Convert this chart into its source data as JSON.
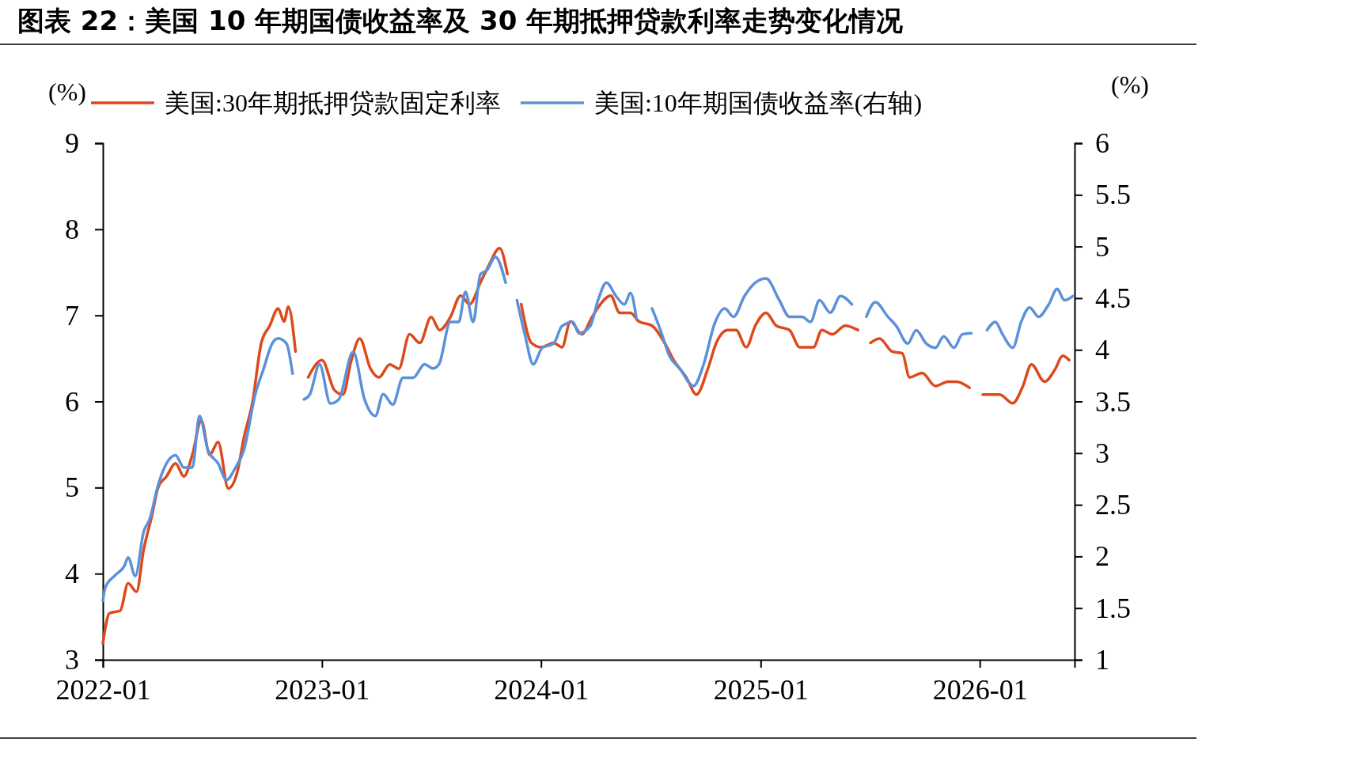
{
  "chart_data": {
    "type": "line",
    "title": "图表 22：美国 10 年期国债收益率及 30 年期抵押贷款利率走势变化情况",
    "ylabel": "(%)",
    "y2label": "(%)",
    "xlim": [
      "2022-01-01",
      "2026-06-08"
    ],
    "xticks": [
      {
        "value": "2022-01-01",
        "label": "2022-01"
      },
      {
        "value": "2023-01-01",
        "label": "2023-01"
      },
      {
        "value": "2024-01-01",
        "label": "2024-01"
      },
      {
        "value": "2025-01-01",
        "label": "2025-01"
      },
      {
        "value": "2026-01-01",
        "label": "2026-01"
      }
    ],
    "ylim": [
      3,
      9
    ],
    "yticks": [
      3,
      4,
      5,
      6,
      7,
      8,
      9
    ],
    "y2lim": [
      1,
      6
    ],
    "y2ticks": [
      1,
      1.5,
      2,
      2.5,
      3,
      3.5,
      4,
      4.5,
      5,
      5.5,
      6
    ],
    "legend": "top",
    "grid": false,
    "line_style": "solid",
    "marker": "none",
    "series": [
      {
        "name": "美国:30年期抵押贷款固定利率",
        "color": "#dc4a1c",
        "x": [
          "2022-01-01",
          "2022-01-12",
          "2022-01-30",
          "2022-02-12",
          "2022-02-26",
          "2022-03-10",
          "2022-03-24",
          "2022-04-03",
          "2022-04-17",
          "2022-05-02",
          "2022-05-16",
          "2022-05-30",
          "2022-06-14",
          "2022-06-28",
          "2022-07-12",
          "2022-07-29",
          "2022-08-13",
          "2022-08-24",
          "2022-09-07",
          "2022-09-22",
          "2022-10-06",
          "2022-10-20",
          "2022-10-30",
          "2022-11-06",
          "2022-11-18",
          "2022-11-25",
          "2022-12-09",
          "2023-01-01",
          "2023-01-22",
          "2023-02-05",
          "2023-02-19",
          "2023-03-05",
          "2023-03-23",
          "2023-04-06",
          "2023-04-24",
          "2023-05-09",
          "2023-05-27",
          "2023-06-13",
          "2023-07-02",
          "2023-07-16",
          "2023-08-03",
          "2023-08-20",
          "2023-09-04",
          "2023-09-22",
          "2023-10-06",
          "2023-10-24",
          "2023-11-06",
          "2023-11-15",
          "2023-11-29",
          "2023-12-16",
          "2024-01-01",
          "2024-01-22",
          "2024-02-05",
          "2024-02-19",
          "2024-03-09",
          "2024-03-26",
          "2024-04-09",
          "2024-04-26",
          "2024-05-11",
          "2024-05-29",
          "2024-06-12",
          "2024-07-04",
          "2024-07-25",
          "2024-08-09",
          "2024-08-30",
          "2024-09-16",
          "2024-10-05",
          "2024-10-19",
          "2024-11-07",
          "2024-11-21",
          "2024-12-08",
          "2024-12-23",
          "2025-01-10",
          "2025-01-27",
          "2025-02-18",
          "2025-03-07",
          "2025-03-30",
          "2025-04-13",
          "2025-04-30",
          "2025-05-22",
          "2025-06-12",
          "2025-06-23",
          "2025-07-03",
          "2025-07-18",
          "2025-08-08",
          "2025-08-25",
          "2025-09-06",
          "2025-09-27",
          "2025-10-19",
          "2025-11-09",
          "2025-11-23",
          "2025-12-15",
          "2025-12-25",
          "2026-01-06",
          "2026-02-03",
          "2026-02-25",
          "2026-03-14",
          "2026-03-28",
          "2026-04-19",
          "2026-05-07",
          "2026-05-19",
          "2026-05-30"
        ],
        "values": [
          3.19,
          3.54,
          3.57,
          3.89,
          3.79,
          4.28,
          4.68,
          5.0,
          5.13,
          5.28,
          5.13,
          5.38,
          5.78,
          5.38,
          5.53,
          4.99,
          5.18,
          5.58,
          5.98,
          6.68,
          6.88,
          7.08,
          6.93,
          7.1,
          6.58,
          null,
          6.28,
          6.48,
          6.13,
          6.08,
          6.48,
          6.73,
          6.38,
          6.28,
          6.43,
          6.38,
          6.78,
          6.68,
          6.98,
          6.83,
          6.98,
          7.23,
          7.13,
          7.38,
          7.58,
          7.78,
          7.48,
          null,
          7.13,
          6.68,
          6.63,
          6.68,
          6.63,
          6.93,
          6.78,
          6.98,
          7.13,
          7.23,
          7.03,
          7.03,
          6.93,
          6.88,
          6.68,
          6.48,
          6.28,
          6.08,
          6.38,
          6.68,
          6.83,
          6.83,
          6.63,
          6.88,
          7.03,
          6.88,
          6.83,
          6.63,
          6.63,
          6.83,
          6.78,
          6.88,
          6.83,
          null,
          6.68,
          6.73,
          6.58,
          6.56,
          6.28,
          6.33,
          6.18,
          6.23,
          6.23,
          6.16,
          null,
          6.08,
          6.08,
          5.98,
          6.18,
          6.43,
          6.23,
          6.38,
          6.53,
          6.48
        ]
      },
      {
        "name": "美国:10年期国债收益率(右轴)",
        "color": "#5b91d9",
        "axis": "y2",
        "x": [
          "2022-01-01",
          "2022-01-05",
          "2022-01-22",
          "2022-02-06",
          "2022-02-12",
          "2022-02-24",
          "2022-03-10",
          "2022-03-20",
          "2022-04-03",
          "2022-04-17",
          "2022-05-02",
          "2022-05-16",
          "2022-05-30",
          "2022-06-11",
          "2022-06-25",
          "2022-07-12",
          "2022-07-26",
          "2022-08-10",
          "2022-08-24",
          "2022-09-12",
          "2022-09-26",
          "2022-10-10",
          "2022-10-20",
          "2022-11-03",
          "2022-11-13",
          "2022-11-22",
          "2022-12-02",
          "2022-12-12",
          "2022-12-28",
          "2023-01-15",
          "2023-01-29",
          "2023-02-22",
          "2023-03-13",
          "2023-03-31",
          "2023-04-13",
          "2023-04-29",
          "2023-05-16",
          "2023-06-02",
          "2023-06-21",
          "2023-07-05",
          "2023-07-15",
          "2023-08-03",
          "2023-08-17",
          "2023-08-28",
          "2023-09-10",
          "2023-09-22",
          "2023-10-03",
          "2023-10-17",
          "2023-11-03",
          "2023-11-12",
          "2023-11-22",
          "2023-12-05",
          "2023-12-19",
          "2024-01-03",
          "2024-01-22",
          "2024-02-05",
          "2024-02-23",
          "2024-03-04",
          "2024-03-23",
          "2024-04-05",
          "2024-04-19",
          "2024-05-05",
          "2024-05-19",
          "2024-05-29",
          "2024-06-08",
          "2024-06-22",
          "2024-07-04",
          "2024-07-18",
          "2024-08-02",
          "2024-08-19",
          "2024-09-11",
          "2024-09-28",
          "2024-10-16",
          "2024-11-02",
          "2024-11-17",
          "2024-12-05",
          "2024-12-23",
          "2025-01-10",
          "2025-02-01",
          "2025-02-18",
          "2025-03-11",
          "2025-03-25",
          "2025-04-09",
          "2025-04-27",
          "2025-05-14",
          "2025-06-02",
          "2025-06-12",
          "2025-06-26",
          "2025-07-11",
          "2025-08-01",
          "2025-08-15",
          "2025-09-03",
          "2025-09-17",
          "2025-10-04",
          "2025-10-19",
          "2025-11-02",
          "2025-11-19",
          "2025-12-03",
          "2025-12-18",
          "2025-12-30",
          "2026-01-13",
          "2026-01-27",
          "2026-02-08",
          "2026-02-25",
          "2026-03-11",
          "2026-03-25",
          "2026-04-09",
          "2026-04-26",
          "2026-05-10",
          "2026-05-22",
          "2026-06-05"
        ],
        "values": [
          1.57,
          1.7,
          1.82,
          1.91,
          1.99,
          1.81,
          2.24,
          2.36,
          2.69,
          2.9,
          2.98,
          2.86,
          2.86,
          3.36,
          3.03,
          2.9,
          2.74,
          2.86,
          3.03,
          3.57,
          3.82,
          4.06,
          4.11,
          4.06,
          3.77,
          null,
          3.52,
          3.57,
          3.86,
          3.48,
          3.52,
          3.98,
          3.52,
          3.36,
          3.57,
          3.47,
          3.73,
          3.73,
          3.86,
          3.82,
          3.86,
          4.27,
          4.27,
          4.56,
          4.27,
          4.73,
          4.77,
          4.9,
          4.65,
          null,
          4.48,
          4.15,
          3.86,
          4.02,
          4.06,
          4.23,
          4.27,
          4.16,
          4.23,
          4.48,
          4.65,
          4.52,
          4.44,
          4.55,
          4.3,
          null,
          4.4,
          4.19,
          3.94,
          3.82,
          3.65,
          3.86,
          4.25,
          4.4,
          4.32,
          4.52,
          4.65,
          4.69,
          4.48,
          4.32,
          4.32,
          4.27,
          4.48,
          4.36,
          4.52,
          4.44,
          null,
          4.32,
          4.46,
          4.32,
          4.23,
          4.06,
          4.19,
          4.06,
          4.02,
          4.13,
          4.02,
          4.15,
          4.16,
          null,
          4.19,
          4.27,
          4.15,
          4.02,
          4.27,
          4.41,
          4.32,
          4.44,
          4.59,
          4.48,
          4.52
        ]
      }
    ]
  }
}
